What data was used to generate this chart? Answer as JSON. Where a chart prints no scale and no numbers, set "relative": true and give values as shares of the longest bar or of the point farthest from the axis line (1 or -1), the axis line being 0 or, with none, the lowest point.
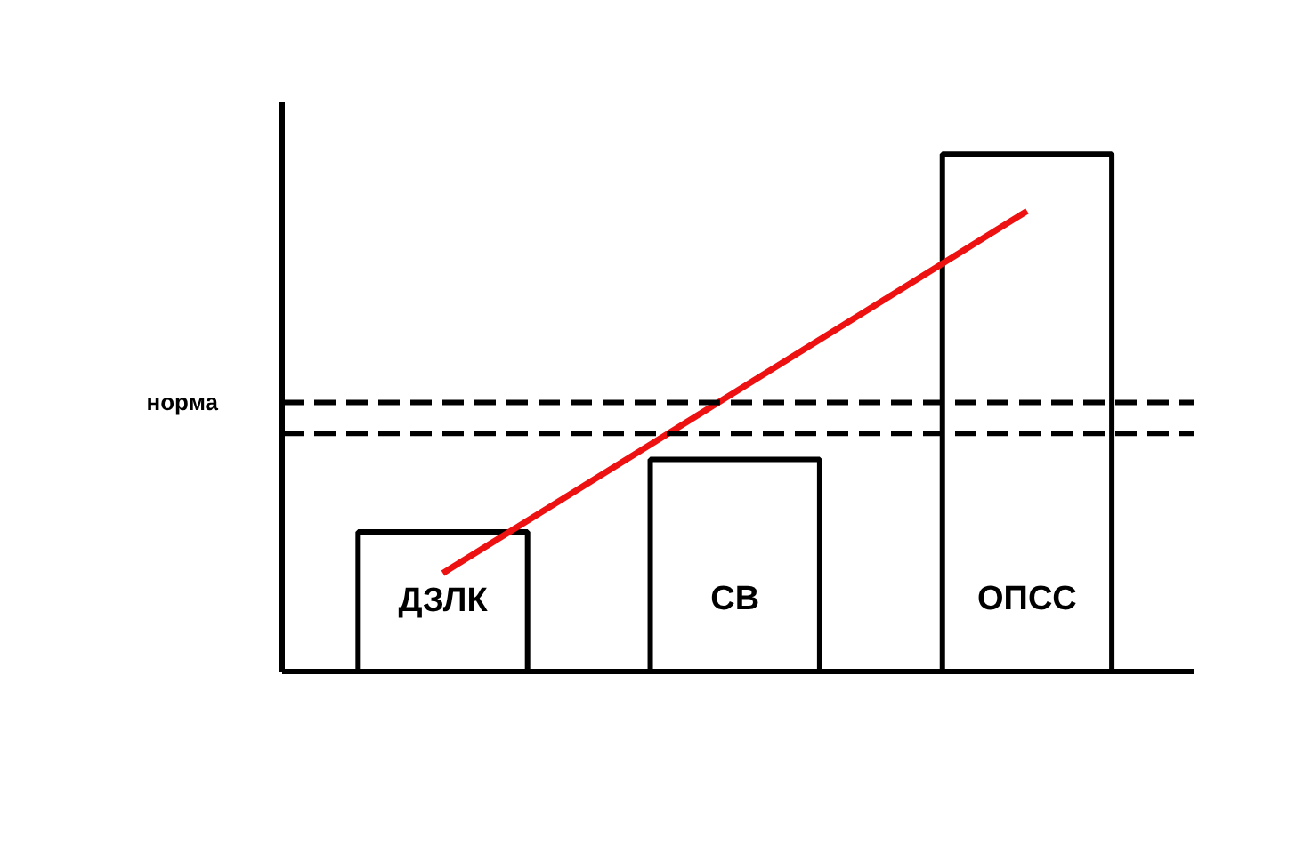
{
  "chart_data": {
    "type": "bar",
    "relative": true,
    "categories": [
      "ДЗЛК",
      "СВ",
      "ОПСС"
    ],
    "series": [
      {
        "color": "#ffffff",
        "values": [
          0.27,
          0.41,
          1
        ]
      },
      {
        "type": "line",
        "color": "#ee1111",
        "x": [
          "ДЗЛК",
          "ОПСС"
        ],
        "values": [
          0.19,
          0.89
        ]
      }
    ],
    "ref_lines": [
      {
        "axis": "y",
        "value": 0.52,
        "label": "норма",
        "color": "#000000",
        "line_style": "dashed"
      },
      {
        "axis": "y",
        "value": 0.46,
        "label": null,
        "color": "#000000",
        "line_style": "dashed"
      }
    ],
    "tick_labels": false,
    "grid": false
  }
}
